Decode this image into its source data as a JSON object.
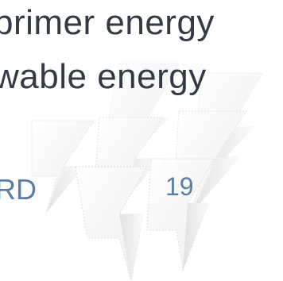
{
  "colors": {
    "background": "#ffffff",
    "text_primary": "#333a44",
    "text_accent": "#5a7fa6",
    "shape_fill": "#fafafa",
    "shape_shadow": "#cfcfcf"
  },
  "text": {
    "line_1": "primer  energy",
    "line_2": "wable  energy",
    "label_left": "RD",
    "label_right": "19"
  }
}
